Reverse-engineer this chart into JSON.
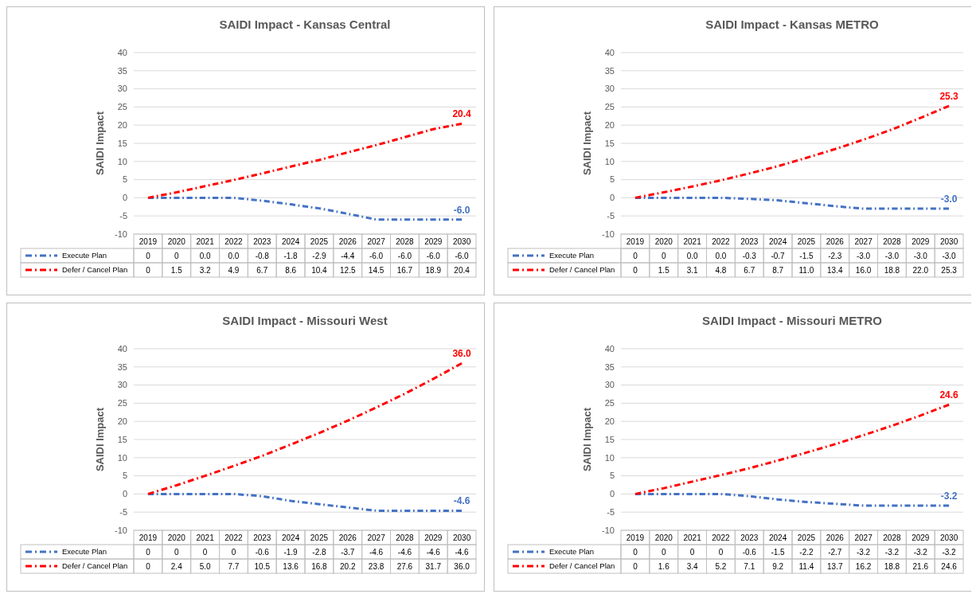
{
  "chart_data": [
    {
      "type": "line",
      "title": "SAIDI Impact - Kansas Central",
      "ylabel": "SAIDI Impact",
      "categories": [
        "2019",
        "2020",
        "2021",
        "2022",
        "2023",
        "2024",
        "2025",
        "2026",
        "2027",
        "2028",
        "2029",
        "2030"
      ],
      "ylim": [
        -10,
        40
      ],
      "yticks": [
        -10,
        -5,
        0,
        5,
        10,
        15,
        20,
        25,
        30,
        35,
        40
      ],
      "grid": "y",
      "legend": "bottom",
      "line_style": "dashed",
      "marker": "none",
      "series": [
        {
          "name": "Execute Plan",
          "color": "#4472c4",
          "values": [
            0,
            0,
            0,
            0,
            -0.8,
            -1.8,
            -2.9,
            -4.4,
            -6.0,
            -6.0,
            -6.0,
            -6.0
          ],
          "value_labels": [
            "0",
            "0",
            "0.0",
            "0.0",
            "-0.8",
            "-1.8",
            "-2.9",
            "-4.4",
            "-6.0",
            "-6.0",
            "-6.0",
            "-6.0"
          ]
        },
        {
          "name": "Defer / Cancel Plan",
          "color": "#ff0000",
          "values": [
            0,
            1.5,
            3.2,
            4.9,
            6.7,
            8.6,
            10.4,
            12.5,
            14.5,
            16.7,
            18.9,
            20.4
          ],
          "value_labels": [
            "0",
            "1.5",
            "3.2",
            "4.9",
            "6.7",
            "8.6",
            "10.4",
            "12.5",
            "14.5",
            "16.7",
            "18.9",
            "20.4"
          ]
        }
      ],
      "annotations": [
        {
          "text": "-6.0",
          "x": "2030",
          "y": -6.0
        },
        {
          "text": "20.4",
          "x": "2030",
          "y": 20.4
        }
      ]
    },
    {
      "type": "line",
      "title": "SAIDI Impact - Kansas METRO",
      "ylabel": "SAIDI Impact",
      "categories": [
        "2019",
        "2020",
        "2021",
        "2022",
        "2023",
        "2024",
        "2025",
        "2026",
        "2027",
        "2028",
        "2029",
        "2030"
      ],
      "ylim": [
        -10,
        40
      ],
      "yticks": [
        -10,
        -5,
        0,
        5,
        10,
        15,
        20,
        25,
        30,
        35,
        40
      ],
      "grid": "y",
      "legend": "bottom",
      "line_style": "dashed",
      "marker": "none",
      "series": [
        {
          "name": "Execute Plan",
          "color": "#4472c4",
          "values": [
            0,
            0,
            0,
            0,
            -0.3,
            -0.7,
            -1.5,
            -2.3,
            -3.0,
            -3.0,
            -3.0,
            -3.0
          ],
          "value_labels": [
            "0",
            "0",
            "0.0",
            "0.0",
            "-0.3",
            "-0.7",
            "-1.5",
            "-2.3",
            "-3.0",
            "-3.0",
            "-3.0",
            "-3.0"
          ]
        },
        {
          "name": "Defer / Cancel Plan",
          "color": "#ff0000",
          "values": [
            0,
            1.5,
            3.1,
            4.8,
            6.7,
            8.7,
            11.0,
            13.4,
            16.0,
            18.8,
            22.0,
            25.3
          ],
          "value_labels": [
            "0",
            "1.5",
            "3.1",
            "4.8",
            "6.7",
            "8.7",
            "11.0",
            "13.4",
            "16.0",
            "18.8",
            "22.0",
            "25.3"
          ]
        }
      ],
      "annotations": [
        {
          "text": "-3.0",
          "x": "2030",
          "y": -3.0
        },
        {
          "text": "25.3",
          "x": "2030",
          "y": 25.3
        }
      ]
    },
    {
      "type": "line",
      "title": "SAIDI Impact - Missouri West",
      "ylabel": "SAIDI Impact",
      "categories": [
        "2019",
        "2020",
        "2021",
        "2022",
        "2023",
        "2024",
        "2025",
        "2026",
        "2027",
        "2028",
        "2029",
        "2030"
      ],
      "ylim": [
        -10,
        40
      ],
      "yticks": [
        -10,
        -5,
        0,
        5,
        10,
        15,
        20,
        25,
        30,
        35,
        40
      ],
      "grid": "y",
      "legend": "bottom",
      "line_style": "dashed",
      "marker": "none",
      "series": [
        {
          "name": "Execute Plan",
          "color": "#4472c4",
          "values": [
            0,
            0,
            0,
            0,
            -0.6,
            -1.9,
            -2.8,
            -3.7,
            -4.6,
            -4.6,
            -4.6,
            -4.6
          ],
          "value_labels": [
            "0",
            "0",
            "0",
            "0",
            "-0.6",
            "-1.9",
            "-2.8",
            "-3.7",
            "-4.6",
            "-4.6",
            "-4.6",
            "-4.6"
          ]
        },
        {
          "name": "Defer / Cancel Plan",
          "color": "#ff0000",
          "values": [
            0,
            2.4,
            5.0,
            7.7,
            10.5,
            13.6,
            16.8,
            20.2,
            23.8,
            27.6,
            31.7,
            36.0
          ],
          "value_labels": [
            "0",
            "2.4",
            "5.0",
            "7.7",
            "10.5",
            "13.6",
            "16.8",
            "20.2",
            "23.8",
            "27.6",
            "31.7",
            "36.0"
          ]
        }
      ],
      "annotations": [
        {
          "text": "-4.6",
          "x": "2030",
          "y": -4.6
        },
        {
          "text": "36.0",
          "x": "2030",
          "y": 36.0
        }
      ]
    },
    {
      "type": "line",
      "title": "SAIDI Impact - Missouri METRO",
      "ylabel": "SAIDI Impact",
      "categories": [
        "2019",
        "2020",
        "2021",
        "2022",
        "2023",
        "2024",
        "2025",
        "2026",
        "2027",
        "2028",
        "2029",
        "2030"
      ],
      "ylim": [
        -10,
        40
      ],
      "yticks": [
        -10,
        -5,
        0,
        5,
        10,
        15,
        20,
        25,
        30,
        35,
        40
      ],
      "grid": "y",
      "legend": "bottom",
      "line_style": "dashed",
      "marker": "none",
      "series": [
        {
          "name": "Execute Plan",
          "color": "#4472c4",
          "values": [
            0,
            0,
            0,
            0,
            -0.6,
            -1.5,
            -2.2,
            -2.7,
            -3.2,
            -3.2,
            -3.2,
            -3.2
          ],
          "value_labels": [
            "0",
            "0",
            "0",
            "0",
            "-0.6",
            "-1.5",
            "-2.2",
            "-2.7",
            "-3.2",
            "-3.2",
            "-3.2",
            "-3.2"
          ]
        },
        {
          "name": "Defer / Cancel Plan",
          "color": "#ff0000",
          "values": [
            0,
            1.6,
            3.4,
            5.2,
            7.1,
            9.2,
            11.4,
            13.7,
            16.2,
            18.8,
            21.6,
            24.6
          ],
          "value_labels": [
            "0",
            "1.6",
            "3.4",
            "5.2",
            "7.1",
            "9.2",
            "11.4",
            "13.7",
            "16.2",
            "18.8",
            "21.6",
            "24.6"
          ]
        }
      ],
      "annotations": [
        {
          "text": "-3.2",
          "x": "2030",
          "y": -3.2
        },
        {
          "text": "24.6",
          "x": "2030",
          "y": 24.6
        }
      ]
    }
  ]
}
